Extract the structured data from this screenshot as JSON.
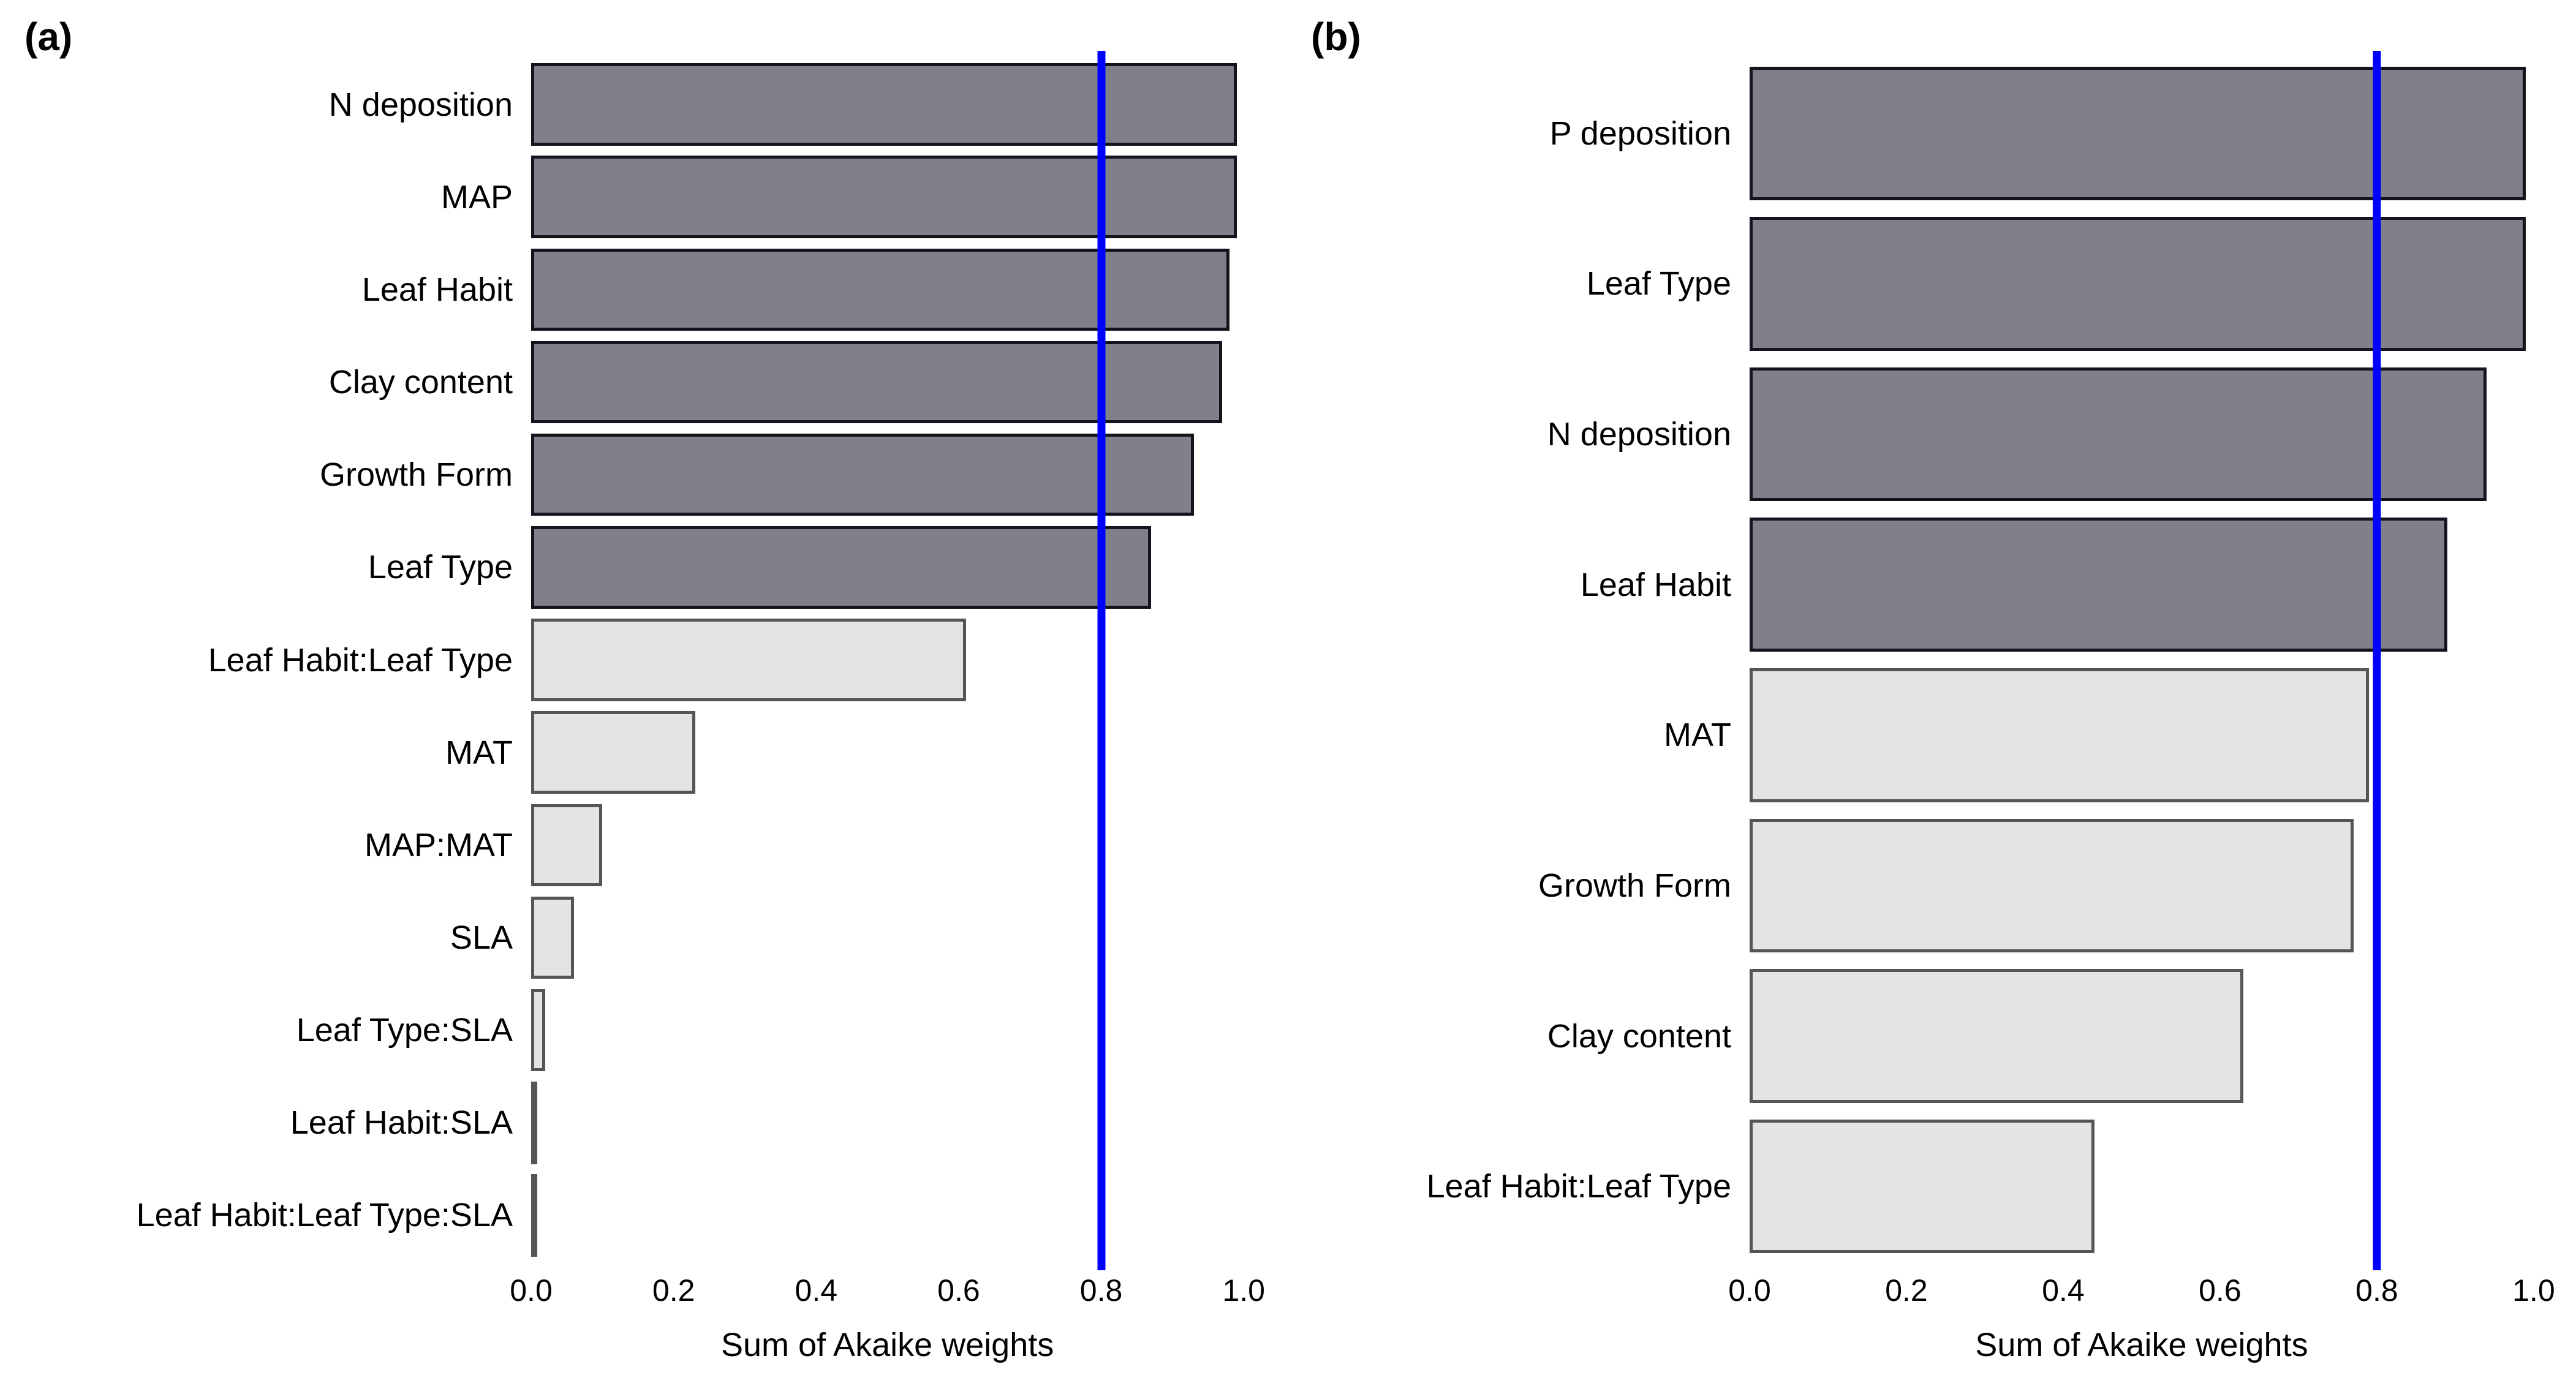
{
  "figure": {
    "background_color": "#ffffff",
    "reference_line_color": "#0000ff",
    "bar_above_fill": "#80808a",
    "bar_above_border": "#14141f",
    "bar_below_fill": "#e4e4e4",
    "bar_below_border": "#555555",
    "text_color": "#000000"
  },
  "chart_data": [
    {
      "type": "bar",
      "orientation": "horizontal",
      "panel_tag": "(a)",
      "title": "",
      "xlabel": "Sum of Akaike weights",
      "ylabel": "",
      "xlim": [
        0.0,
        1.0
      ],
      "x_max_extent": 1.06,
      "xticks": [
        0.0,
        0.2,
        0.4,
        0.6,
        0.8,
        1.0
      ],
      "xtick_labels": [
        "0.0",
        "0.2",
        "0.4",
        "0.6",
        "0.8",
        "1.0"
      ],
      "reference_line_x": 0.8,
      "grid": false,
      "legend": false,
      "color_rule": "dark grey fill if value >= 0.8, light grey fill otherwise",
      "categories": [
        "N deposition",
        "MAP",
        "Leaf Habit",
        "Clay content",
        "Growth Form",
        "Leaf Type",
        "Leaf Habit:Leaf Type",
        "MAT",
        "MAP:MAT",
        "SLA",
        "Leaf Type:SLA",
        "Leaf Habit:SLA",
        "Leaf Habit:Leaf Type:SLA"
      ],
      "values": [
        0.99,
        0.99,
        0.98,
        0.97,
        0.93,
        0.87,
        0.61,
        0.23,
        0.1,
        0.06,
        0.02,
        0.0,
        0.0
      ]
    },
    {
      "type": "bar",
      "orientation": "horizontal",
      "panel_tag": "(b)",
      "title": "",
      "xlabel": "Sum of Akaike weights",
      "ylabel": "",
      "xlim": [
        0.0,
        1.0
      ],
      "x_max_extent": 1.054,
      "xticks": [
        0.0,
        0.2,
        0.4,
        0.6,
        0.8,
        1.0
      ],
      "xtick_labels": [
        "0.0",
        "0.2",
        "0.4",
        "0.6",
        "0.8",
        "1.0"
      ],
      "reference_line_x": 0.8,
      "grid": false,
      "legend": false,
      "color_rule": "dark grey fill if value >= 0.8, light grey fill otherwise",
      "categories": [
        "P deposition",
        "Leaf Type",
        "N deposition",
        "Leaf Habit",
        "MAT",
        "Growth Form",
        "Clay content",
        "Leaf Habit:Leaf Type"
      ],
      "values": [
        0.99,
        0.99,
        0.94,
        0.89,
        0.79,
        0.77,
        0.63,
        0.44
      ]
    }
  ]
}
